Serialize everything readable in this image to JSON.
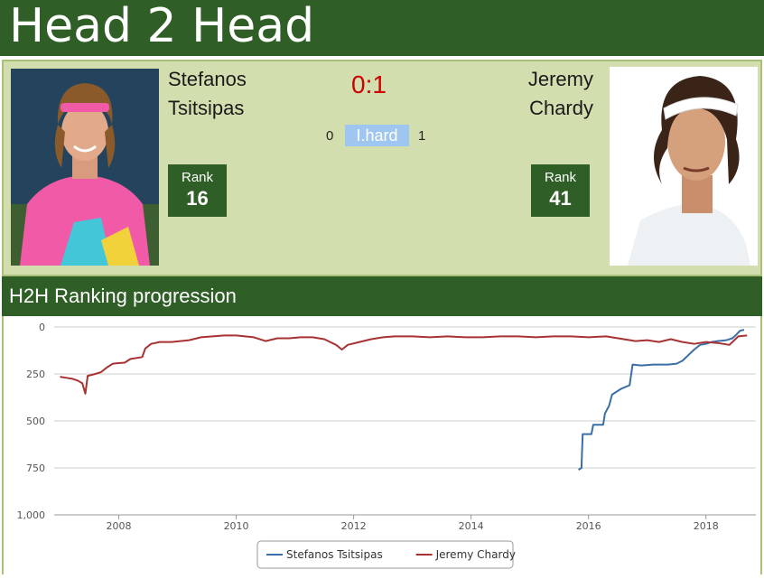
{
  "header": {
    "title": "Head 2 Head"
  },
  "match": {
    "player1": {
      "first": "Stefanos",
      "last": "Tsitsipas",
      "rank_label": "Rank",
      "rank": "16",
      "surface_wins": "0"
    },
    "player2": {
      "first": "Jeremy",
      "last": "Chardy",
      "rank_label": "Rank",
      "rank": "41",
      "surface_wins": "1"
    },
    "score": "0:1",
    "surface": "I.hard"
  },
  "section": {
    "title": "H2H Ranking progression"
  },
  "colors": {
    "header_bg": "#2f5e26",
    "panel_bg": "#d3deae",
    "score": "#cc0000",
    "surface": "#9ec6f1",
    "p1_line": "#3a6ea5",
    "p2_line": "#a83232"
  },
  "chart_data": {
    "type": "line",
    "xlabel": "",
    "ylabel": "",
    "x_range": [
      2006.9,
      2018.85
    ],
    "ylim": [
      1000,
      0
    ],
    "y_reversed": true,
    "y_ticks": [
      0,
      250,
      500,
      750,
      1000
    ],
    "y_tick_labels": [
      "0",
      "250",
      "500",
      "750",
      "1,000"
    ],
    "x_ticks": [
      2008,
      2010,
      2012,
      2014,
      2016,
      2018
    ],
    "x_tick_labels": [
      "2008",
      "2010",
      "2012",
      "2014",
      "2016",
      "2018"
    ],
    "grid": true,
    "legend_position": "bottom-center",
    "series": [
      {
        "name": "Stefanos Tsitsipas",
        "color": "#3a6ea5",
        "points": [
          [
            2015.83,
            760
          ],
          [
            2015.88,
            750
          ],
          [
            2015.9,
            570
          ],
          [
            2016.05,
            570
          ],
          [
            2016.08,
            520
          ],
          [
            2016.25,
            520
          ],
          [
            2016.28,
            460
          ],
          [
            2016.35,
            420
          ],
          [
            2016.4,
            360
          ],
          [
            2016.55,
            330
          ],
          [
            2016.7,
            310
          ],
          [
            2016.75,
            200
          ],
          [
            2016.9,
            205
          ],
          [
            2017.1,
            200
          ],
          [
            2017.35,
            200
          ],
          [
            2017.5,
            195
          ],
          [
            2017.6,
            180
          ],
          [
            2017.7,
            150
          ],
          [
            2017.8,
            120
          ],
          [
            2017.9,
            95
          ],
          [
            2018.0,
            90
          ],
          [
            2018.1,
            80
          ],
          [
            2018.2,
            75
          ],
          [
            2018.35,
            70
          ],
          [
            2018.45,
            60
          ],
          [
            2018.52,
            40
          ],
          [
            2018.58,
            20
          ],
          [
            2018.65,
            15
          ]
        ]
      },
      {
        "name": "Jeremy Chardy",
        "color": "#a83232",
        "points": [
          [
            2007.0,
            265
          ],
          [
            2007.1,
            270
          ],
          [
            2007.2,
            275
          ],
          [
            2007.3,
            285
          ],
          [
            2007.38,
            300
          ],
          [
            2007.43,
            355
          ],
          [
            2007.47,
            260
          ],
          [
            2007.6,
            250
          ],
          [
            2007.7,
            240
          ],
          [
            2007.8,
            215
          ],
          [
            2007.9,
            195
          ],
          [
            2008.1,
            190
          ],
          [
            2008.2,
            170
          ],
          [
            2008.4,
            160
          ],
          [
            2008.45,
            115
          ],
          [
            2008.55,
            90
          ],
          [
            2008.7,
            80
          ],
          [
            2008.9,
            80
          ],
          [
            2009.2,
            70
          ],
          [
            2009.4,
            55
          ],
          [
            2009.6,
            50
          ],
          [
            2009.8,
            45
          ],
          [
            2010.0,
            45
          ],
          [
            2010.3,
            55
          ],
          [
            2010.5,
            75
          ],
          [
            2010.7,
            60
          ],
          [
            2010.9,
            60
          ],
          [
            2011.1,
            55
          ],
          [
            2011.3,
            55
          ],
          [
            2011.5,
            65
          ],
          [
            2011.7,
            95
          ],
          [
            2011.8,
            120
          ],
          [
            2011.9,
            95
          ],
          [
            2012.1,
            80
          ],
          [
            2012.3,
            65
          ],
          [
            2012.5,
            55
          ],
          [
            2012.7,
            50
          ],
          [
            2013.0,
            50
          ],
          [
            2013.3,
            55
          ],
          [
            2013.6,
            50
          ],
          [
            2013.9,
            55
          ],
          [
            2014.2,
            55
          ],
          [
            2014.5,
            50
          ],
          [
            2014.8,
            50
          ],
          [
            2015.1,
            55
          ],
          [
            2015.4,
            50
          ],
          [
            2015.7,
            50
          ],
          [
            2016.0,
            55
          ],
          [
            2016.3,
            50
          ],
          [
            2016.6,
            65
          ],
          [
            2016.8,
            75
          ],
          [
            2017.0,
            70
          ],
          [
            2017.2,
            80
          ],
          [
            2017.4,
            65
          ],
          [
            2017.6,
            80
          ],
          [
            2017.8,
            90
          ],
          [
            2018.0,
            80
          ],
          [
            2018.2,
            85
          ],
          [
            2018.4,
            95
          ],
          [
            2018.55,
            50
          ],
          [
            2018.7,
            45
          ]
        ]
      }
    ]
  }
}
